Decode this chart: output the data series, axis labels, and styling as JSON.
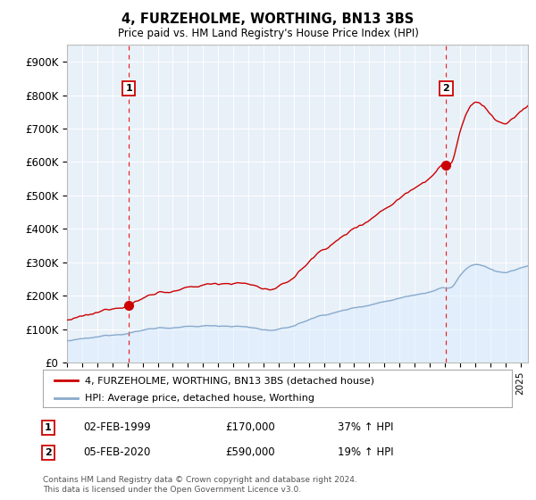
{
  "title": "4, FURZEHOLME, WORTHING, BN13 3BS",
  "subtitle": "Price paid vs. HM Land Registry's House Price Index (HPI)",
  "ylim": [
    0,
    950000
  ],
  "yticks": [
    0,
    100000,
    200000,
    300000,
    400000,
    500000,
    600000,
    700000,
    800000,
    900000
  ],
  "ytick_labels": [
    "£0",
    "£100K",
    "£200K",
    "£300K",
    "£400K",
    "£500K",
    "£600K",
    "£700K",
    "£800K",
    "£900K"
  ],
  "xlim_start": 1995.0,
  "xlim_end": 2025.5,
  "sale1_x": 1999.09,
  "sale1_y": 170000,
  "sale2_x": 2020.09,
  "sale2_y": 590000,
  "sale1_label": "1",
  "sale2_label": "2",
  "sale_color": "#cc0000",
  "hpi_color": "#88aacc",
  "hpi_fill_color": "#ddeeff",
  "vline_color": "#dd0000",
  "legend_label_red": "4, FURZEHOLME, WORTHING, BN13 3BS (detached house)",
  "legend_label_blue": "HPI: Average price, detached house, Worthing",
  "annotation1_date": "02-FEB-1999",
  "annotation1_price": "£170,000",
  "annotation1_hpi": "37% ↑ HPI",
  "annotation2_date": "05-FEB-2020",
  "annotation2_price": "£590,000",
  "annotation2_hpi": "19% ↑ HPI",
  "footer": "Contains HM Land Registry data © Crown copyright and database right 2024.\nThis data is licensed under the Open Government Licence v3.0.",
  "background_color": "#ffffff",
  "plot_bg_color": "#e8f0f8",
  "grid_color": "#ffffff"
}
